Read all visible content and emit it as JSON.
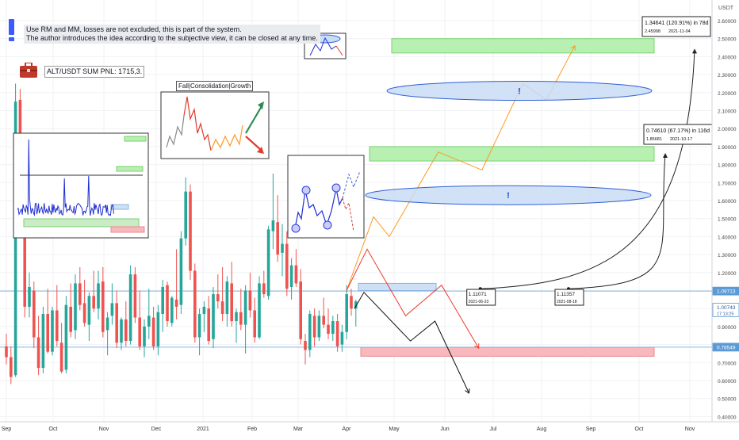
{
  "header": {
    "quote_unit": "USDT",
    "notes": [
      "Use RM and MM, losses are not excluded, this is part of the system.",
      "The author introduces the idea according to the subjective view, it can be closed at any time."
    ],
    "pnl_label": "ALT/USDT SUM PNL: 1715,3.",
    "panel_caption": "Fall|Consolidation|Growth"
  },
  "colors": {
    "bull": "#26a69a",
    "bear": "#ef5350",
    "level_line": "#89b4e0",
    "target_zone": "#b7f0b0",
    "stop_zone": "#f8b8bc",
    "ellipse_fill": "#c9dcf5",
    "ellipse_stroke": "#2f5fd9",
    "path_bull": "#ff9822",
    "path_bear": "#ef3a2c",
    "path_alt": "#111111"
  },
  "chart_data": {
    "type": "candlestick",
    "x_ticks": [
      "Sep",
      "Oct",
      "Nov",
      "Dec",
      "2021",
      "Feb",
      "Mar",
      "Apr",
      "May",
      "Jun",
      "Jul",
      "Aug",
      "Sep",
      "Oct",
      "Nov"
    ],
    "y_ticks": [
      "0.40000",
      "0.50000",
      "0.60000",
      "0.70000",
      "0.80000",
      "0.90000",
      "1.00000",
      "1.10000",
      "1.20000",
      "1.30000",
      "1.40000",
      "1.50000",
      "1.60000",
      "1.70000",
      "1.80000",
      "1.90000",
      "2.00000",
      "2.10000",
      "2.20000",
      "2.30000",
      "2.40000",
      "2.50000",
      "2.60000"
    ],
    "ylim": [
      0.35,
      2.65
    ],
    "price_tags": [
      {
        "value": 1.09713,
        "label": "1.09713"
      },
      {
        "value": 1.00743,
        "label": "1.00743",
        "sub": "17:13:25"
      },
      {
        "value": 0.78549,
        "label": "0.78549"
      }
    ],
    "horizontal_levels": [
      1.09713,
      0.78549
    ],
    "zones": [
      {
        "kind": "target",
        "from": 2.42,
        "to": 2.5
      },
      {
        "kind": "target",
        "from": 1.82,
        "to": 1.9
      },
      {
        "kind": "stop",
        "from": 0.735,
        "to": 0.785
      },
      {
        "kind": "entry",
        "from": 1.1,
        "to": 1.14
      }
    ],
    "candles": [
      [
        0.79,
        0.86,
        0.69,
        0.73
      ],
      [
        0.73,
        0.79,
        0.58,
        0.62
      ],
      [
        0.63,
        2.25,
        0.62,
        2.15
      ],
      [
        2.16,
        2.22,
        1.45,
        1.52
      ],
      [
        1.52,
        1.58,
        0.95,
        1.01
      ],
      [
        1.01,
        1.2,
        0.95,
        1.12
      ],
      [
        1.1,
        1.15,
        0.78,
        0.84
      ],
      [
        0.84,
        0.96,
        0.63,
        0.67
      ],
      [
        0.67,
        1.01,
        0.64,
        0.97
      ],
      [
        0.97,
        1.11,
        0.75,
        0.76
      ],
      [
        0.76,
        1.01,
        0.74,
        0.99
      ],
      [
        0.99,
        1.13,
        0.79,
        0.82
      ],
      [
        0.81,
        0.92,
        0.64,
        0.65
      ],
      [
        0.66,
        1.07,
        0.64,
        1.02
      ],
      [
        1.01,
        1.14,
        0.84,
        0.87
      ],
      [
        0.88,
        1.19,
        0.83,
        1.14
      ],
      [
        1.14,
        1.23,
        0.99,
        1.02
      ],
      [
        1.03,
        1.16,
        0.9,
        0.92
      ],
      [
        0.91,
        1.09,
        0.82,
        1.07
      ],
      [
        1.07,
        1.21,
        0.98,
        1.0
      ],
      [
        1.0,
        1.21,
        0.94,
        1.14
      ],
      [
        1.15,
        1.23,
        0.84,
        0.87
      ],
      [
        0.88,
        0.98,
        0.74,
        0.95
      ],
      [
        0.96,
        1.14,
        0.91,
        1.03
      ],
      [
        1.03,
        1.1,
        0.78,
        0.81
      ],
      [
        0.81,
        0.95,
        0.77,
        0.94
      ],
      [
        0.94,
        1.04,
        0.79,
        0.82
      ],
      [
        0.82,
        1.24,
        0.8,
        1.19
      ],
      [
        1.19,
        1.23,
        0.92,
        0.95
      ],
      [
        0.95,
        1.1,
        0.77,
        0.79
      ],
      [
        0.79,
        0.94,
        0.73,
        0.9
      ],
      [
        0.9,
        1.11,
        0.83,
        0.96
      ],
      [
        0.95,
        1.01,
        0.77,
        0.79
      ],
      [
        0.79,
        1.02,
        0.74,
        0.98
      ],
      [
        0.97,
        1.16,
        0.87,
        1.12
      ],
      [
        1.13,
        1.15,
        0.9,
        0.93
      ],
      [
        0.92,
        1.07,
        0.9,
        1.06
      ],
      [
        1.05,
        1.33,
        0.94,
        1.01
      ],
      [
        1.02,
        1.43,
        0.97,
        1.39
      ],
      [
        1.39,
        1.73,
        1.35,
        1.65
      ],
      [
        1.65,
        1.69,
        1.16,
        1.21
      ],
      [
        1.21,
        1.25,
        0.81,
        0.84
      ],
      [
        0.84,
        1.0,
        0.74,
        0.97
      ],
      [
        0.97,
        1.04,
        0.87,
        1.01
      ],
      [
        1.0,
        1.07,
        0.8,
        0.82
      ],
      [
        0.83,
        1.12,
        0.78,
        1.08
      ],
      [
        1.08,
        1.19,
        1.0,
        1.04
      ],
      [
        1.04,
        1.23,
        0.93,
        0.97
      ],
      [
        0.97,
        1.18,
        0.9,
        1.15
      ],
      [
        1.14,
        1.26,
        0.9,
        0.93
      ],
      [
        0.93,
        1.0,
        0.81,
        0.98
      ],
      [
        0.98,
        1.11,
        0.88,
        0.91
      ],
      [
        0.91,
        1.13,
        0.75,
        1.1
      ],
      [
        1.1,
        1.2,
        0.95,
        0.99
      ],
      [
        0.99,
        1.06,
        0.81,
        0.84
      ],
      [
        0.84,
        1.18,
        0.83,
        1.14
      ],
      [
        1.14,
        1.21,
        1.06,
        1.08
      ],
      [
        1.07,
        1.46,
        1.05,
        1.44
      ],
      [
        1.43,
        1.75,
        1.33,
        1.49
      ],
      [
        1.48,
        1.63,
        1.26,
        1.3
      ],
      [
        1.31,
        1.47,
        1.18,
        1.36
      ],
      [
        1.36,
        1.43,
        1.07,
        1.11
      ],
      [
        1.12,
        1.28,
        1.05,
        1.24
      ],
      [
        1.24,
        1.33,
        1.12,
        1.14
      ],
      [
        1.15,
        1.22,
        0.8,
        0.83
      ],
      [
        0.82,
        0.86,
        0.69,
        0.77
      ],
      [
        0.77,
        0.99,
        0.73,
        0.97
      ],
      [
        0.96,
        1.0,
        0.79,
        0.84
      ],
      [
        0.84,
        0.99,
        0.82,
        0.96
      ],
      [
        0.96,
        1.06,
        0.89,
        0.91
      ],
      [
        0.91,
        1.0,
        0.83,
        0.86
      ],
      [
        0.86,
        0.96,
        0.82,
        0.93
      ],
      [
        0.93,
        0.97,
        0.76,
        0.79
      ],
      [
        0.8,
        0.91,
        0.76,
        0.87
      ],
      [
        0.87,
        1.13,
        0.83,
        1.08
      ],
      [
        1.07,
        1.11,
        0.96,
        1.0
      ],
      [
        1.0,
        1.05,
        0.9,
        1.04
      ]
    ],
    "projection_paths": [
      {
        "name": "growth",
        "color_key": "path_bull",
        "points": [
          [
            "2021-04-01",
            1.1
          ],
          [
            "2021-04-18",
            1.51
          ],
          [
            "2021-04-28",
            1.4
          ],
          [
            "2021-05-28",
            1.87
          ],
          [
            "2021-06-24",
            1.77
          ],
          [
            "2021-07-20",
            2.25
          ],
          [
            "2021-08-04",
            2.16
          ],
          [
            "2021-08-22",
            2.46
          ]
        ]
      },
      {
        "name": "fall",
        "color_key": "path_bear",
        "points": [
          [
            "2021-04-01",
            1.1
          ],
          [
            "2021-04-14",
            1.33
          ],
          [
            "2021-05-08",
            0.96
          ],
          [
            "2021-05-30",
            1.13
          ],
          [
            "2021-06-22",
            0.78
          ]
        ]
      },
      {
        "name": "consolidation",
        "color_key": "path_alt",
        "points": [
          [
            "2021-04-06",
            1.0
          ],
          [
            "2021-04-12",
            1.09
          ],
          [
            "2021-05-11",
            0.82
          ],
          [
            "2021-05-26",
            0.93
          ],
          [
            "2021-06-16",
            0.53
          ]
        ]
      }
    ],
    "callouts": [
      {
        "value": "1.11071",
        "date": "2021-06-23"
      },
      {
        "value": "1.11357",
        "date": "2021-08-18"
      },
      {
        "headline": "0.74610 (67.17%) in 116d",
        "value": "1.85681",
        "date": "2021-10-17"
      },
      {
        "headline": "1.34641 (120.91%) in 78d",
        "value": "2.45998",
        "date": "2021-11-04"
      }
    ],
    "markers": [
      "!",
      "!"
    ]
  }
}
